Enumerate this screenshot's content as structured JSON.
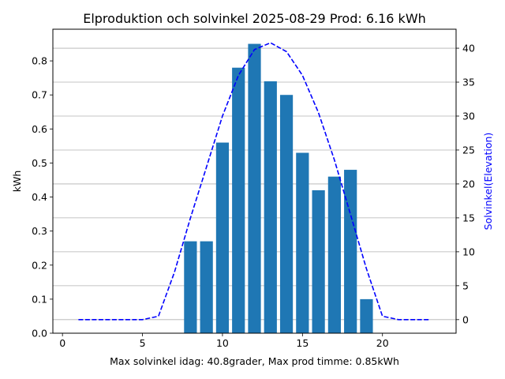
{
  "chart_data": {
    "type": "bar",
    "title": "Elproduktion och solvinkel 2025-08-29 Prod: 6.16 kWh",
    "xlabel": "Max solvinkel idag: 40.8grader, Max prod timme: 0.85kWh",
    "ylabel": "kWh",
    "y2label": "Solvinkel(Elevation)",
    "xlim": [
      -0.6,
      24.6
    ],
    "ylim": [
      0,
      0.893
    ],
    "y2lim": [
      -2.0,
      42.8
    ],
    "xticks": [
      0,
      5,
      10,
      15,
      20
    ],
    "yticks": [
      0.0,
      0.1,
      0.2,
      0.3,
      0.4,
      0.5,
      0.6,
      0.7,
      0.8
    ],
    "y2ticks": [
      0,
      5,
      10,
      15,
      20,
      25,
      30,
      35,
      40
    ],
    "grid": "horizontal, right axis",
    "bar_color": "#1f77b4",
    "line_color": "#0000ff",
    "bars": {
      "x": [
        8,
        9,
        10,
        11,
        12,
        13,
        14,
        15,
        16,
        17,
        18,
        19
      ],
      "values": [
        0.27,
        0.27,
        0.56,
        0.78,
        0.85,
        0.74,
        0.7,
        0.53,
        0.42,
        0.46,
        0.48,
        0.1
      ]
    },
    "elevation": {
      "x": [
        1,
        2,
        3,
        4,
        5,
        6,
        7,
        8,
        9,
        10,
        11,
        12,
        13,
        14,
        15,
        16,
        17,
        18,
        19,
        20,
        21,
        22,
        23
      ],
      "values": [
        0,
        0,
        0,
        0,
        0,
        0.5,
        7,
        15,
        22.5,
        30,
        36,
        39.8,
        40.8,
        39.5,
        36,
        30.5,
        23.5,
        15.5,
        7.5,
        0.5,
        0,
        0,
        0
      ]
    }
  }
}
